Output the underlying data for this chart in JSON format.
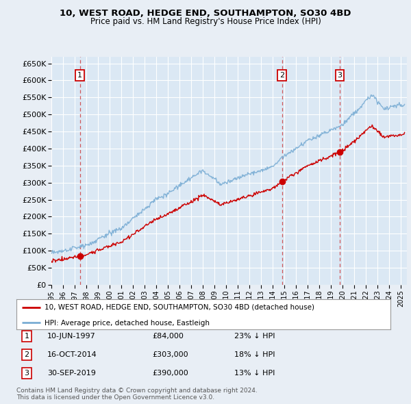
{
  "title": "10, WEST ROAD, HEDGE END, SOUTHAMPTON, SO30 4BD",
  "subtitle": "Price paid vs. HM Land Registry's House Price Index (HPI)",
  "ylim": [
    0,
    670000
  ],
  "yticks": [
    0,
    50000,
    100000,
    150000,
    200000,
    250000,
    300000,
    350000,
    400000,
    450000,
    500000,
    550000,
    600000,
    650000
  ],
  "background_color": "#e8eef5",
  "plot_bg": "#dbe8f4",
  "grid_color": "#ffffff",
  "legend_label_red": "10, WEST ROAD, HEDGE END, SOUTHAMPTON, SO30 4BD (detached house)",
  "legend_label_blue": "HPI: Average price, detached house, Eastleigh",
  "transactions": [
    {
      "num": 1,
      "date": "10-JUN-1997",
      "price": 84000,
      "pct": "23%",
      "dir": "↓",
      "year_x": 1997.44
    },
    {
      "num": 2,
      "date": "16-OCT-2014",
      "price": 303000,
      "pct": "18%",
      "dir": "↓",
      "year_x": 2014.79
    },
    {
      "num": 3,
      "date": "30-SEP-2019",
      "price": 390000,
      "pct": "13%",
      "dir": "↓",
      "year_x": 2019.75
    }
  ],
  "footer": "Contains HM Land Registry data © Crown copyright and database right 2024.\nThis data is licensed under the Open Government Licence v3.0.",
  "red_color": "#cc0000",
  "blue_color": "#7aadd4",
  "dashed_color": "#cc3333",
  "label_box_color": "#cc0000",
  "xlim_left": 1995.0,
  "xlim_right": 2025.5
}
